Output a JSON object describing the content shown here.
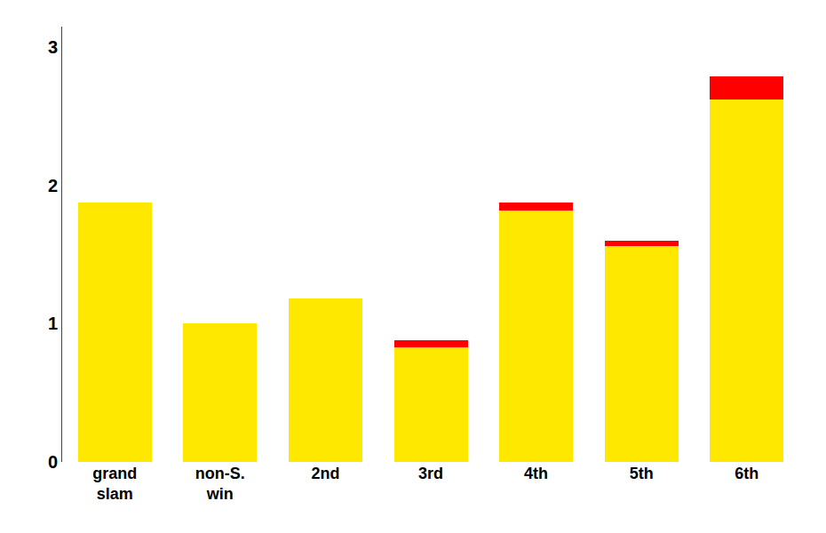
{
  "chart_data": {
    "type": "bar",
    "stacked": true,
    "categories": [
      "grand\nslam",
      "non-S.\nwin",
      "2nd",
      "3rd",
      "4th",
      "5th",
      "6th"
    ],
    "series": [
      {
        "color": "#FFE800",
        "values": [
          1.875,
          1.0,
          1.18,
          0.83,
          1.82,
          1.56,
          2.62
        ]
      },
      {
        "color": "#FF0000",
        "values": [
          0.0,
          0.0,
          0.0,
          0.05,
          0.06,
          0.04,
          0.17
        ]
      }
    ],
    "ylim": [
      0,
      3.15
    ],
    "yticks": [
      0,
      1,
      2,
      3
    ],
    "grid": false
  }
}
